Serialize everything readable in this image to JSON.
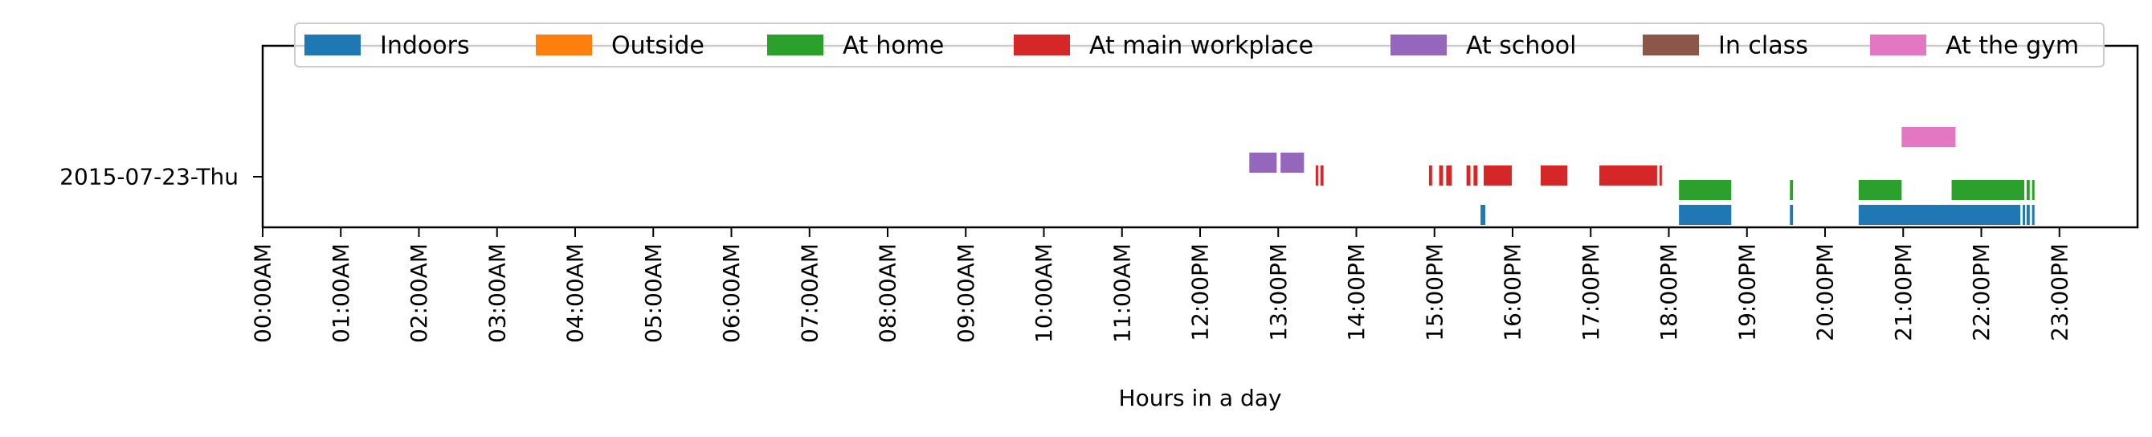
{
  "chart_data": {
    "type": "timeline",
    "xlabel": "Hours in a day",
    "xlim": [
      0,
      24
    ],
    "grid": false,
    "legend_position": "top-center",
    "y_categories": [
      "2015-07-23-Thu"
    ],
    "x_tick_labels": [
      "00:00AM",
      "01:00AM",
      "02:00AM",
      "03:00AM",
      "04:00AM",
      "05:00AM",
      "06:00AM",
      "07:00AM",
      "08:00AM",
      "09:00AM",
      "10:00AM",
      "11:00AM",
      "12:00PM",
      "13:00PM",
      "14:00PM",
      "15:00PM",
      "16:00PM",
      "17:00PM",
      "18:00PM",
      "19:00PM",
      "20:00PM",
      "21:00PM",
      "22:00PM",
      "23:00PM"
    ],
    "series": [
      {
        "name": "Indoors",
        "color": "#1f77b4",
        "segments": [
          [
            15.59,
            15.65
          ],
          [
            18.13,
            18.8
          ],
          [
            19.55,
            19.59
          ],
          [
            20.43,
            22.5
          ],
          [
            22.53,
            22.55
          ],
          [
            22.58,
            22.62
          ],
          [
            22.65,
            22.68
          ]
        ]
      },
      {
        "name": "Outside",
        "color": "#ff7f0e",
        "segments": []
      },
      {
        "name": "At home",
        "color": "#2ca02c",
        "segments": [
          [
            18.13,
            18.8
          ],
          [
            19.55,
            19.59
          ],
          [
            20.43,
            20.98
          ],
          [
            21.62,
            22.55
          ],
          [
            22.58,
            22.62
          ],
          [
            22.65,
            22.68
          ]
        ]
      },
      {
        "name": "At main workplace",
        "color": "#d62728",
        "segments": [
          [
            13.48,
            13.51
          ],
          [
            13.54,
            13.58
          ],
          [
            14.93,
            14.97
          ],
          [
            15.06,
            15.11
          ],
          [
            15.15,
            15.22
          ],
          [
            15.41,
            15.46
          ],
          [
            15.5,
            15.55
          ],
          [
            15.63,
            15.99
          ],
          [
            16.36,
            16.7
          ],
          [
            17.11,
            17.85
          ],
          [
            17.88,
            17.91
          ]
        ]
      },
      {
        "name": "At school",
        "color": "#9467bd",
        "segments": [
          [
            12.63,
            12.98
          ],
          [
            13.03,
            13.33
          ]
        ]
      },
      {
        "name": "In class",
        "color": "#8c564b",
        "segments": []
      },
      {
        "name": "At the gym",
        "color": "#e377c2",
        "segments": [
          [
            20.98,
            21.67
          ]
        ]
      }
    ]
  }
}
